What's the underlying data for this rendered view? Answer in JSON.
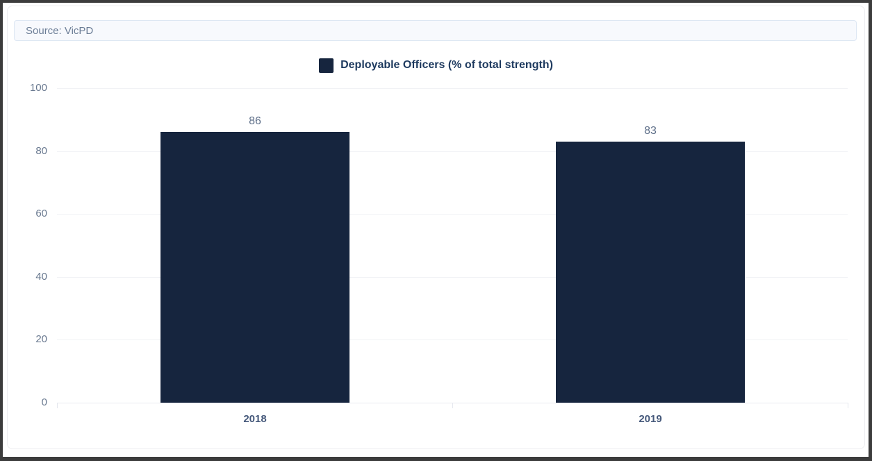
{
  "source": {
    "text": "Source: VicPD"
  },
  "legend": {
    "label": "Deployable Officers (% of total strength)",
    "swatch_color": "#16253e"
  },
  "chart_data": {
    "type": "bar",
    "title": "",
    "categories": [
      "2018",
      "2019"
    ],
    "series": [
      {
        "name": "Deployable Officers (% of total strength)",
        "values": [
          86,
          83
        ],
        "color": "#16253e"
      }
    ],
    "data_labels": [
      "86",
      "83"
    ],
    "xlabel": "",
    "ylabel": "",
    "ylim": [
      0,
      100
    ],
    "yticks": [
      0,
      20,
      40,
      60,
      80,
      100
    ],
    "grid": true,
    "legend_position": "top"
  },
  "colors": {
    "bar": "#16253e",
    "gridline": "#f1f2f5",
    "axis_line": "#e9eaef",
    "ytick_text": "#68788f",
    "xtick_text": "#46597b",
    "value_label_text": "#5d6e88",
    "source_bg": "#f7f9fd",
    "source_border": "#dde7f3",
    "source_text": "#6b7d96",
    "frame_border": "#3c3c3c"
  }
}
